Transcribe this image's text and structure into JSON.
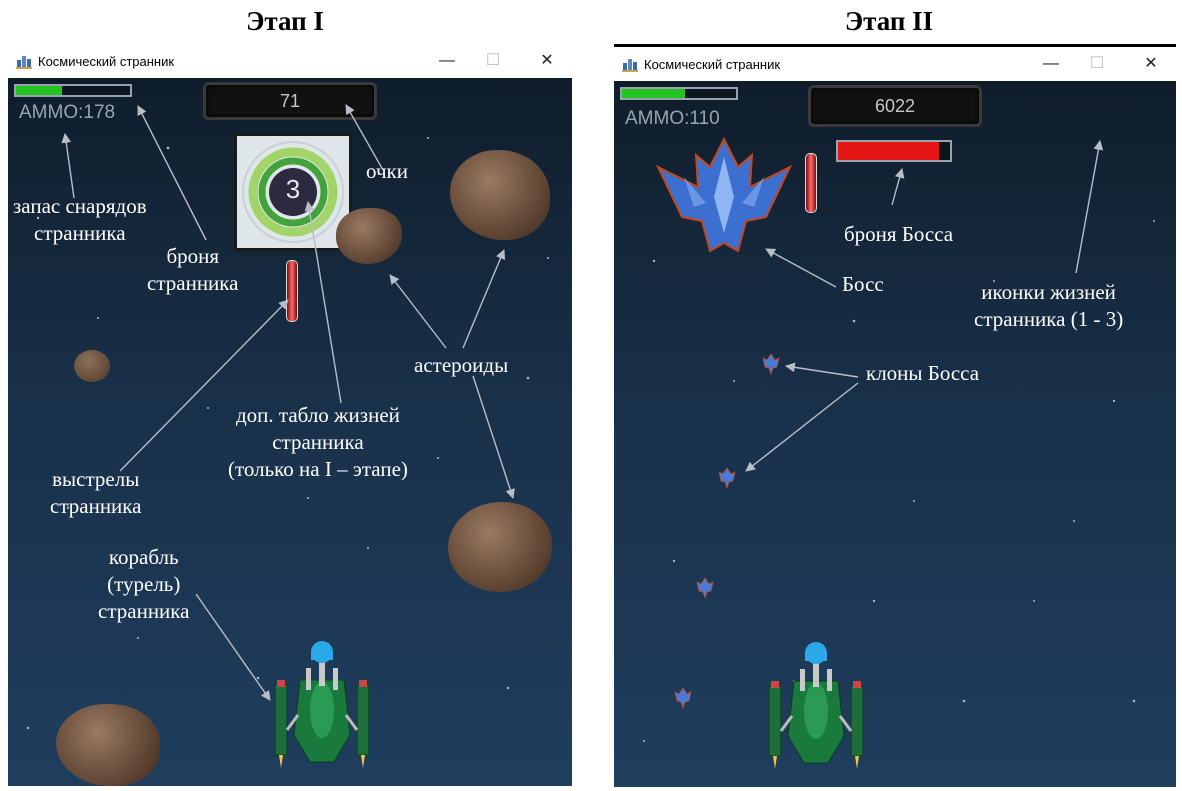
{
  "stages": [
    {
      "heading": "Этап I",
      "window_title": "Космический странник",
      "ammo_label": "AMMO:178",
      "score": "71",
      "lives_counter": "3",
      "armor_level": 0.4,
      "annotations": {
        "ammo": [
          "запас снарядов",
          "странника"
        ],
        "armor": [
          "броня",
          "странника"
        ],
        "score": "очки",
        "asteroids": "астероиды",
        "lives": [
          "доп. табло жизней",
          "странника",
          "(только на I – этапе)"
        ],
        "shots": [
          "выстрелы",
          "странника"
        ],
        "ship": [
          "корабль",
          "(турель)",
          "странника"
        ]
      }
    },
    {
      "heading": "Этап II",
      "window_title": "Космический странник",
      "ammo_label": "AMMO:110",
      "score": "6022",
      "armor_level": 0.55,
      "boss_armor_level": 0.9,
      "annotations": {
        "boss_armor": "броня Босса",
        "boss": "Босс",
        "lives_icons": [
          "иконки жизней",
          "странника (1 - 3)"
        ],
        "clones": "клоны Босса"
      }
    }
  ],
  "window_controls": {
    "minimize": "—",
    "maximize": "☐",
    "close": "✕"
  },
  "colors": {
    "armor_fill": "#22c322",
    "boss_armor_fill": "#e41616",
    "space_top": "#0f1d2b",
    "space_bottom": "#1f3e5e",
    "annotation_arrow": "#b8bec6"
  }
}
